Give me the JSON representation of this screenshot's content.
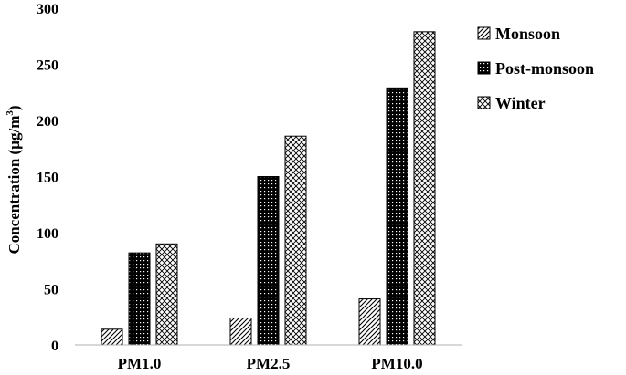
{
  "chart_data": {
    "type": "bar",
    "categories": [
      "PM1.0",
      "PM2.5",
      "PM10.0"
    ],
    "series": [
      {
        "name": "Monsoon",
        "values": [
          14,
          24,
          41
        ],
        "pattern": "diagonal-hatch"
      },
      {
        "name": "Post-monsoon",
        "values": [
          82,
          150,
          229
        ],
        "pattern": "dotted-black"
      },
      {
        "name": "Winter",
        "values": [
          90,
          186,
          279
        ],
        "pattern": "crosshatch"
      }
    ],
    "title": "",
    "xlabel": "",
    "ylabel": "Concentration (µg/m³)",
    "ylabel_parts": {
      "base": "Concentration  (µg/m",
      "sup": "3",
      "close": ")"
    },
    "ylim": [
      0,
      300
    ],
    "yticks": [
      0,
      50,
      100,
      150,
      200,
      250,
      300
    ],
    "grid": false,
    "legend_position": "right"
  }
}
